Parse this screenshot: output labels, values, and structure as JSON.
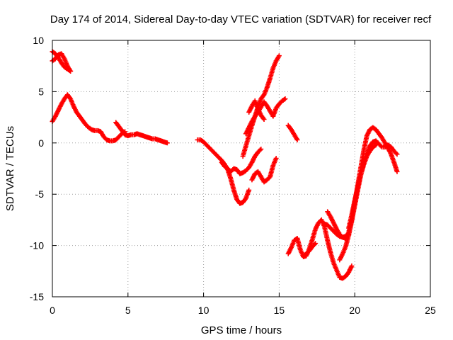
{
  "chart_data": {
    "type": "scatter",
    "title": "Day 174 of 2014, Sidereal Day-to-day VTEC variation (SDTVAR) for receiver recf",
    "xlabel": "GPS time / hours",
    "ylabel": "SDTVAR / TECUs",
    "xlim": [
      0,
      25
    ],
    "ylim": [
      -15,
      10
    ],
    "xticks": [
      "0",
      "5",
      "10",
      "15",
      "20",
      "25"
    ],
    "yticks": [
      "10",
      "5",
      "0",
      "-5",
      "-10",
      "-15"
    ],
    "grid": true,
    "marker": "plus",
    "color": "#ff0000",
    "series": [
      {
        "x": [
          0.0,
          0.2,
          0.4,
          0.6,
          0.8,
          1.0,
          1.2,
          1.4,
          1.6,
          1.8,
          2.0,
          2.2,
          2.4,
          2.6,
          2.8,
          3.0,
          3.2,
          3.4,
          3.6,
          3.8,
          4.0,
          4.2
        ],
        "y": [
          2.1,
          2.6,
          3.2,
          3.8,
          4.3,
          4.7,
          4.3,
          3.6,
          3.0,
          2.6,
          2.2,
          1.8,
          1.5,
          1.3,
          1.2,
          1.2,
          1.1,
          0.6,
          0.3,
          0.2,
          0.2,
          0.3
        ]
      },
      {
        "x": [
          0.0,
          0.2,
          0.4,
          0.6,
          0.8,
          1.0,
          1.2
        ],
        "y": [
          8.0,
          8.2,
          8.6,
          8.7,
          8.2,
          7.5,
          7.0
        ]
      },
      {
        "x": [
          0.0,
          0.2,
          0.4,
          0.6,
          0.8,
          1.0,
          1.2
        ],
        "y": [
          8.9,
          8.7,
          8.3,
          7.8,
          7.4,
          7.2,
          7.0
        ]
      },
      {
        "x": [
          4.2,
          4.4,
          4.6,
          4.8,
          5.0,
          5.2,
          5.4,
          5.6,
          5.8,
          6.0,
          6.2,
          6.4,
          6.6,
          6.8,
          7.0,
          7.2,
          7.4,
          7.6
        ],
        "y": [
          2.0,
          1.6,
          1.2,
          0.8,
          0.7,
          0.8,
          0.8,
          0.9,
          0.8,
          0.7,
          0.6,
          0.5,
          0.4,
          0.4,
          0.3,
          0.2,
          0.1,
          0.0
        ]
      },
      {
        "x": [
          4.2,
          4.4,
          4.6,
          4.8
        ],
        "y": [
          0.3,
          0.6,
          0.9,
          1.1
        ]
      },
      {
        "x": [
          9.6,
          9.8,
          10.0,
          10.2,
          10.4,
          10.6,
          10.8,
          11.0,
          11.2,
          11.4,
          11.6,
          11.8,
          12.0,
          12.2,
          12.4,
          12.6,
          12.8,
          13.0
        ],
        "y": [
          0.3,
          0.3,
          0.1,
          -0.2,
          -0.5,
          -0.8,
          -1.1,
          -1.4,
          -1.7,
          -2.1,
          -2.6,
          -3.5,
          -4.6,
          -5.5,
          -5.9,
          -5.8,
          -5.4,
          -4.6
        ]
      },
      {
        "x": [
          13.2,
          13.4,
          13.6,
          13.8,
          14.0,
          14.2,
          14.4,
          14.6,
          14.8
        ],
        "y": [
          -3.6,
          -3.0,
          -2.8,
          -3.3,
          -3.8,
          -3.6,
          -3.3,
          -2.2,
          -1.5
        ]
      },
      {
        "x": [
          11.2,
          11.4,
          11.6,
          11.8,
          12.0,
          12.2,
          12.4,
          12.6,
          12.8,
          13.0,
          13.2,
          13.4,
          13.6,
          13.8
        ],
        "y": [
          -1.9,
          -2.3,
          -2.5,
          -2.8,
          -2.5,
          -2.6,
          -3.0,
          -2.9,
          -2.7,
          -2.4,
          -1.9,
          -1.3,
          -0.9,
          -0.6
        ]
      },
      {
        "x": [
          12.6,
          12.8,
          13.0,
          13.2,
          13.4,
          13.6,
          13.8,
          14.0,
          14.2,
          14.4,
          14.6,
          14.8,
          15.0
        ],
        "y": [
          -1.3,
          -0.3,
          0.7,
          1.7,
          2.6,
          3.5,
          4.3,
          4.7,
          5.4,
          6.3,
          7.3,
          8.0,
          8.5
        ]
      },
      {
        "x": [
          12.8,
          13.0,
          13.2,
          13.4,
          13.6,
          13.8,
          14.0,
          14.2,
          14.4,
          14.6,
          14.8,
          15.0,
          15.2,
          15.4
        ],
        "y": [
          0.9,
          1.5,
          2.1,
          2.6,
          3.0,
          3.5,
          4.0,
          3.6,
          3.1,
          2.6,
          3.4,
          3.8,
          4.1,
          4.3
        ]
      },
      {
        "x": [
          13.0,
          13.2,
          13.4,
          13.6,
          13.8,
          14.0
        ],
        "y": [
          3.0,
          3.6,
          4.1,
          3.3,
          2.7,
          2.3
        ]
      },
      {
        "x": [
          15.6,
          15.8,
          16.0,
          16.2
        ],
        "y": [
          1.7,
          1.3,
          0.8,
          0.3
        ]
      },
      {
        "x": [
          15.6,
          15.8,
          16.0,
          16.2,
          16.4,
          16.6,
          16.8,
          17.0,
          17.2,
          17.4,
          17.6,
          17.8,
          18.0,
          18.2,
          18.4,
          18.6,
          18.8,
          19.0,
          19.2,
          19.4,
          19.6,
          19.8
        ],
        "y": [
          -10.8,
          -10.2,
          -9.5,
          -9.3,
          -10.4,
          -11.1,
          -11.0,
          -10.3,
          -9.4,
          -8.4,
          -7.8,
          -7.5,
          -8.2,
          -9.5,
          -10.7,
          -11.7,
          -12.4,
          -13.1,
          -13.2,
          -13.0,
          -12.6,
          -12.0
        ]
      },
      {
        "x": [
          16.6,
          16.8,
          17.0,
          17.2,
          17.4
        ],
        "y": [
          -11.0,
          -10.8,
          -10.5,
          -10.1,
          -9.8
        ]
      },
      {
        "x": [
          18.2,
          18.4,
          18.6,
          18.8,
          19.0,
          19.2,
          19.4,
          19.6,
          19.8,
          20.0,
          20.2,
          20.4,
          20.6,
          20.8,
          21.0,
          21.2,
          21.4,
          21.6,
          21.8,
          22.0,
          22.2,
          22.4,
          22.6,
          22.8
        ],
        "y": [
          -6.7,
          -7.2,
          -7.8,
          -8.4,
          -8.9,
          -9.2,
          -9.3,
          -8.7,
          -7.5,
          -5.8,
          -4.1,
          -2.4,
          -0.7,
          0.7,
          1.3,
          1.5,
          1.3,
          0.9,
          0.5,
          0.0,
          -0.5,
          -1.1,
          -1.9,
          -2.8
        ]
      },
      {
        "x": [
          19.0,
          19.2,
          19.4,
          19.6,
          19.8,
          20.0,
          20.2,
          20.4,
          20.6,
          20.8,
          21.0,
          21.2,
          21.4,
          21.6,
          21.8,
          22.0,
          22.2,
          22.4,
          22.6,
          22.8
        ],
        "y": [
          -11.4,
          -10.8,
          -10.1,
          -9.0,
          -7.6,
          -6.1,
          -4.6,
          -3.1,
          -1.9,
          -1.0,
          -0.3,
          0.1,
          0.2,
          -0.1,
          -0.4,
          -0.4,
          -0.2,
          -0.4,
          -0.8,
          -1.1
        ]
      },
      {
        "x": [
          19.6,
          19.8,
          20.0,
          20.2,
          20.4,
          20.6,
          20.8,
          21.0,
          21.2,
          21.4
        ],
        "y": [
          -8.3,
          -7.0,
          -5.6,
          -4.3,
          -3.1,
          -2.1,
          -1.3,
          -0.8,
          -0.4,
          -0.2
        ]
      },
      {
        "x": [
          18.0,
          18.2,
          18.4,
          18.6,
          18.8,
          19.0,
          19.2,
          19.4,
          19.6
        ],
        "y": [
          -7.9,
          -8.0,
          -8.3,
          -8.6,
          -8.9,
          -9.1,
          -9.2,
          -9.1,
          -8.9
        ]
      }
    ]
  }
}
